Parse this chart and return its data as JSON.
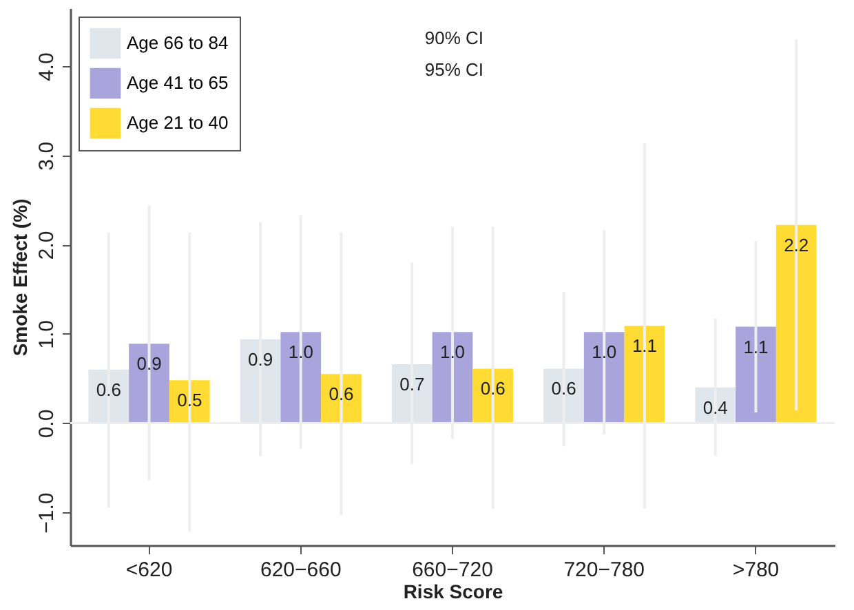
{
  "chart_data": {
    "type": "bar",
    "xlabel": "Risk Score",
    "ylabel": "Smoke Effect (%)",
    "categories": [
      "<620",
      "620−660",
      "660−720",
      "720−780",
      ">780"
    ],
    "series": [
      {
        "name": "Age 66 to 84",
        "color": "#dfe7ec",
        "values": [
          0.6,
          0.94,
          0.66,
          0.61,
          0.4
        ],
        "value_labels": [
          "0.6",
          "0.9",
          "0.7",
          "0.6",
          "0.4"
        ],
        "errors": [
          [
            -0.95,
            2.14
          ],
          [
            -0.37,
            2.25
          ],
          [
            -0.46,
            1.8
          ],
          [
            -0.26,
            1.47
          ],
          [
            -0.37,
            1.17
          ]
        ]
      },
      {
        "name": "Age 41 to 65",
        "color": "#a9a4dc",
        "values": [
          0.89,
          1.02,
          1.02,
          1.02,
          1.08
        ],
        "value_labels": [
          "0.9",
          "1.0",
          "1.0",
          "1.0",
          "1.1"
        ],
        "errors": [
          [
            -0.64,
            2.44
          ],
          [
            -0.29,
            2.33
          ],
          [
            -0.18,
            2.2
          ],
          [
            -0.13,
            2.16
          ],
          [
            0.12,
            2.04
          ]
        ]
      },
      {
        "name": "Age 21 to 40",
        "color": "#ffdb33",
        "values": [
          0.48,
          0.55,
          0.61,
          1.09,
          2.22
        ],
        "value_labels": [
          "0.5",
          "0.6",
          "0.6",
          "1.1",
          "2.2"
        ],
        "errors": [
          [
            -1.22,
            2.14
          ],
          [
            -1.03,
            2.14
          ],
          [
            -0.96,
            2.2
          ],
          [
            -0.96,
            3.14
          ],
          [
            0.14,
            4.3
          ]
        ]
      }
    ],
    "ylim": [
      -1.37,
      4.65
    ],
    "yticks": [
      {
        "value": -1,
        "label": "−1.0"
      },
      {
        "value": 0,
        "label": "0.0"
      },
      {
        "value": 1,
        "label": "1.0"
      },
      {
        "value": 2,
        "label": "2.0"
      },
      {
        "value": 3,
        "label": "3.0"
      },
      {
        "value": 4,
        "label": "4.0"
      }
    ],
    "ref_lines": [
      {
        "axis": "y",
        "value": 0,
        "color": "#eeeeee"
      }
    ],
    "annotations": [
      "90% CI",
      "95% CI"
    ],
    "legend": "top left"
  }
}
